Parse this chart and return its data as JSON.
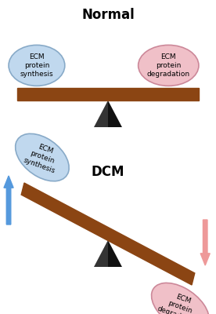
{
  "title_normal": "Normal",
  "title_dcm": "DCM",
  "bg_color": "#ffffff",
  "beam_color": "#8B4513",
  "triangle_color_dark": "#111111",
  "triangle_color_light": "#777777",
  "ellipse_blue_face": "#c0d8ee",
  "ellipse_blue_edge": "#88aac8",
  "ellipse_pink_face": "#f0c0c8",
  "ellipse_pink_edge": "#cc8899",
  "arrow_up_color": "#5599dd",
  "arrow_down_color": "#ee9999",
  "text_synthesis": "ECM\nprotein\nsynthesis",
  "text_degradation": "ECM\nprotein\ndegradation"
}
